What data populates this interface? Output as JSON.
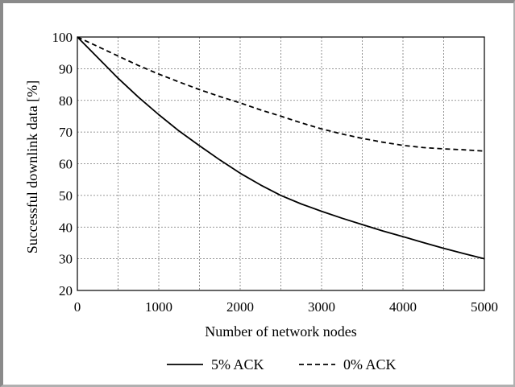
{
  "chart_data": {
    "type": "line",
    "title": "",
    "xlabel": "Number of network nodes",
    "ylabel": "Successful downlink data [%]",
    "xlim": [
      0,
      5000
    ],
    "ylim": [
      20,
      100
    ],
    "x_ticks": [
      "0",
      "1000",
      "2000",
      "3000",
      "4000",
      "5000"
    ],
    "y_ticks": [
      "20",
      "30",
      "40",
      "50",
      "60",
      "70",
      "80",
      "90",
      "100"
    ],
    "grid": true,
    "legend_position": "bottom",
    "series": [
      {
        "name": "5% ACK",
        "style": "solid",
        "x": [
          0,
          250,
          500,
          750,
          1000,
          1250,
          1500,
          1750,
          2000,
          2250,
          2500,
          2750,
          3000,
          3250,
          3500,
          3750,
          4000,
          4250,
          4500,
          4750,
          5000
        ],
        "y": [
          100,
          93.5,
          87,
          81,
          75.5,
          70.3,
          65.7,
          61.2,
          57,
          53.3,
          50,
          47.3,
          45,
          42.8,
          40.8,
          38.8,
          37,
          35.1,
          33.3,
          31.6,
          30
        ]
      },
      {
        "name": "0% ACK",
        "style": "dashed",
        "x": [
          0,
          250,
          500,
          750,
          1000,
          1250,
          1500,
          1750,
          2000,
          2250,
          2500,
          2750,
          3000,
          3250,
          3500,
          3750,
          4000,
          4250,
          4500,
          4750,
          5000
        ],
        "y": [
          100,
          97,
          94,
          91,
          88.3,
          85.8,
          83.4,
          81.2,
          79.2,
          77,
          75,
          72.9,
          71,
          69.4,
          68,
          66.8,
          65.8,
          65.1,
          64.7,
          64.4,
          64
        ]
      }
    ]
  }
}
